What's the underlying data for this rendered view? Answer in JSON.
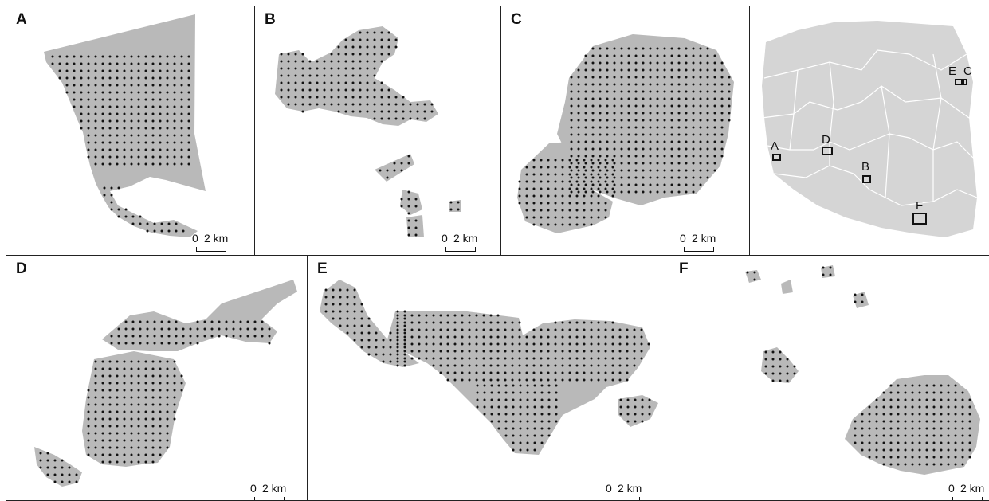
{
  "panels": {
    "A": {
      "label": "A"
    },
    "B": {
      "label": "B"
    },
    "C": {
      "label": "C"
    },
    "D": {
      "label": "D"
    },
    "E": {
      "label": "E"
    },
    "F": {
      "label": "F"
    }
  },
  "scale": {
    "zero": "0",
    "distance": "2 km"
  },
  "inset_map": {
    "site_labels": [
      "A",
      "B",
      "C",
      "D",
      "E",
      "F"
    ],
    "colors": {
      "country": "#d5d5d5",
      "borders": "#ffffff"
    }
  },
  "colors": {
    "forest": "#b9b9b9",
    "plot_dot": "#111111"
  }
}
